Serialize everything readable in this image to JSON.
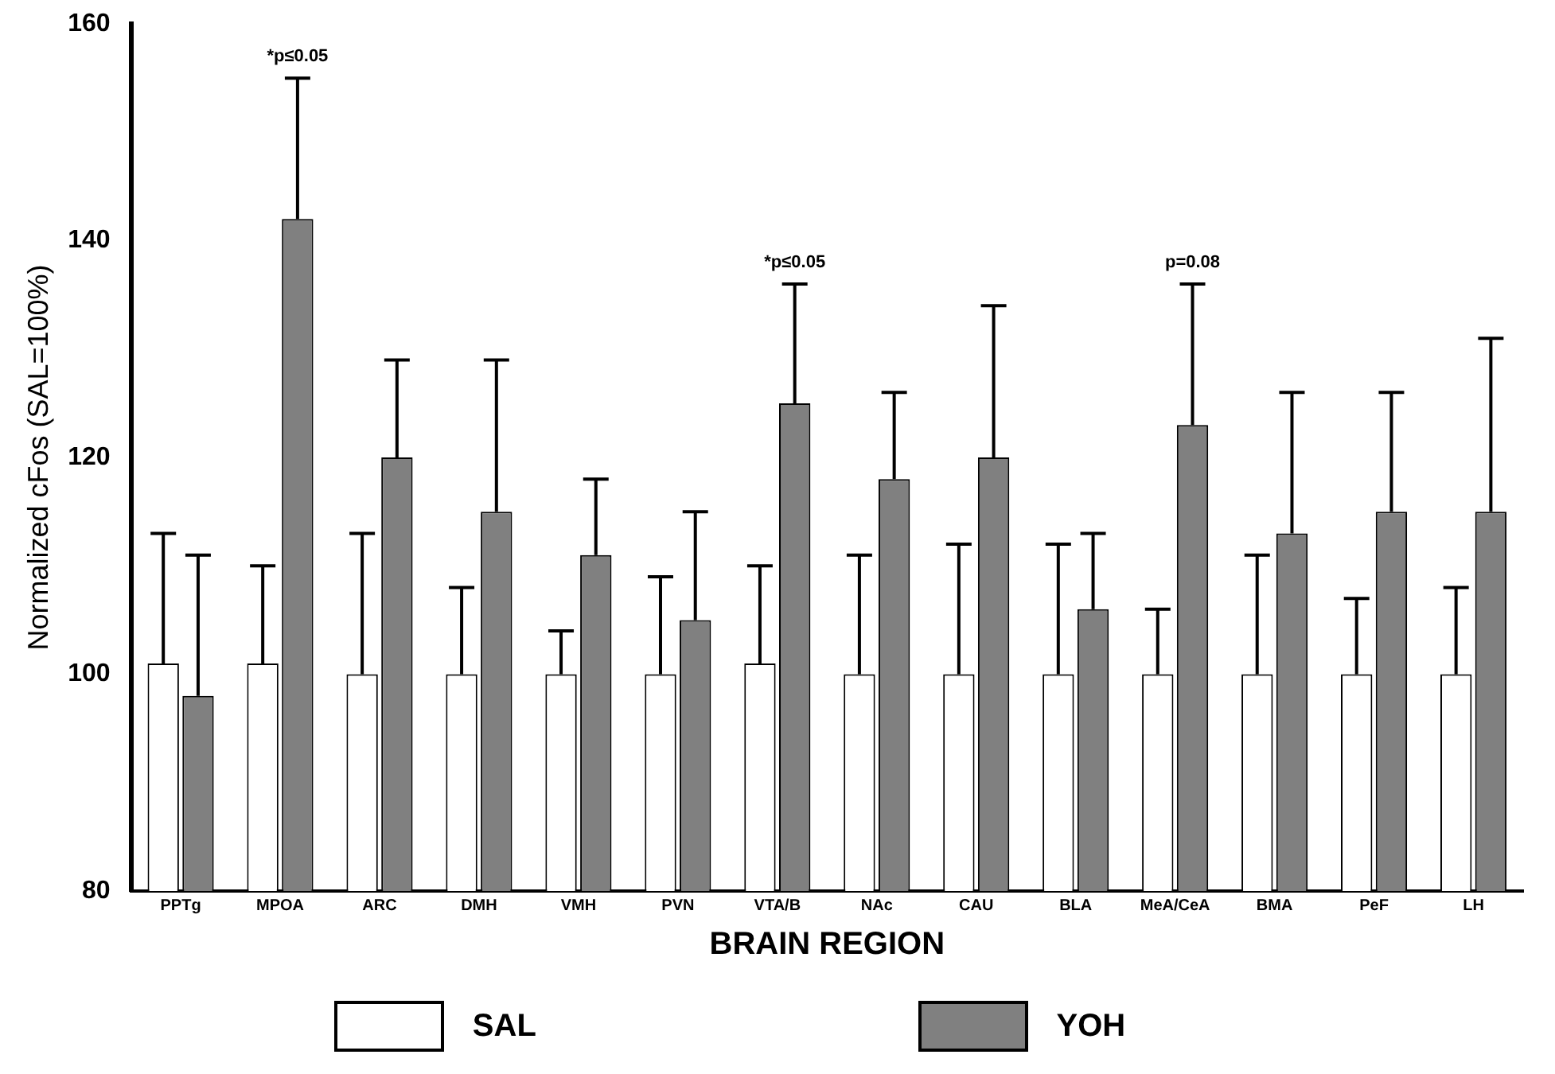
{
  "chart_data": {
    "type": "bar",
    "xlabel": "BRAIN REGION",
    "ylabel": "Normalized cFos (SAL=100%)",
    "categories": [
      "PPTg",
      "MPOA",
      "ARC",
      "DMH",
      "VMH",
      "PVN",
      "VTA/B",
      "NAc",
      "CAU",
      "BLA",
      "MeA/CeA",
      "BMA",
      "PeF",
      "LH"
    ],
    "series": [
      {
        "name": "SAL",
        "color": "#ffffff",
        "values": [
          101,
          101,
          100,
          100,
          100,
          100,
          101,
          100,
          100,
          100,
          100,
          100,
          100,
          100
        ],
        "errors": [
          [
            101,
            113
          ],
          [
            101,
            110
          ],
          [
            100,
            113
          ],
          [
            100,
            108
          ],
          [
            100,
            104
          ],
          [
            100,
            109
          ],
          [
            101,
            110
          ],
          [
            100,
            111
          ],
          [
            100,
            112
          ],
          [
            100,
            112
          ],
          [
            100,
            106
          ],
          [
            100,
            111
          ],
          [
            100,
            107
          ],
          [
            100,
            108
          ]
        ]
      },
      {
        "name": "YOH",
        "color": "#808080",
        "values": [
          98,
          142,
          120,
          115,
          111,
          105,
          125,
          118,
          120,
          106,
          123,
          113,
          115,
          115
        ],
        "errors": [
          [
            98,
            111
          ],
          [
            142,
            155
          ],
          [
            120,
            129
          ],
          [
            115,
            129
          ],
          [
            111,
            118
          ],
          [
            105,
            115
          ],
          [
            125,
            136
          ],
          [
            118,
            126
          ],
          [
            120,
            134
          ],
          [
            106,
            113
          ],
          [
            123,
            136
          ],
          [
            113,
            126
          ],
          [
            115,
            126
          ],
          [
            115,
            131
          ]
        ]
      }
    ],
    "ylim": [
      80,
      160
    ],
    "yticks": [
      80,
      100,
      120,
      140,
      160
    ],
    "grid": false,
    "legend": "bottom",
    "annotations": [
      {
        "text": "*p≤0.05",
        "x": "MPOA",
        "y": 155
      },
      {
        "text": "*p≤0.05",
        "x": "VTA/B",
        "y": 136
      },
      {
        "text": "p=0.08",
        "x": "MeA/CeA",
        "y": 136
      }
    ]
  }
}
